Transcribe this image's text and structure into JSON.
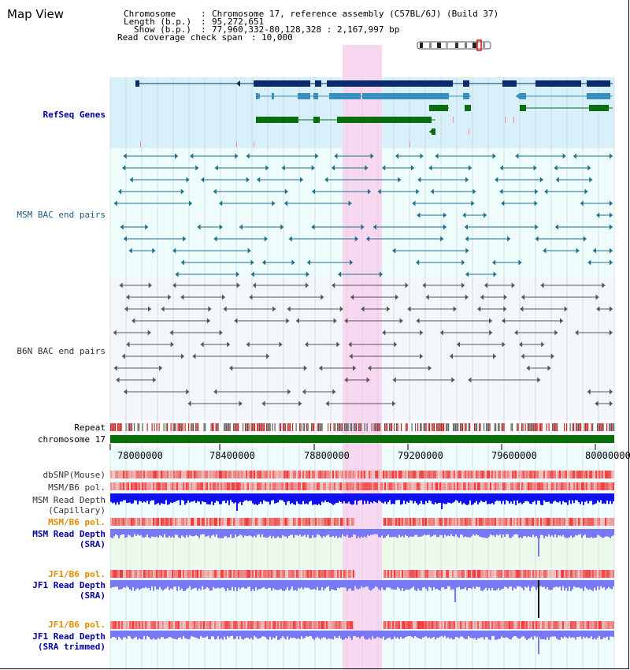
{
  "page": {
    "title": "Map View"
  },
  "info": {
    "chromosome_key": "Chromosome",
    "chromosome_value": "Chromosome 17, reference assembly (C57BL/6J) (Build 37)",
    "length_key": "Length (b.p.)",
    "length_value": "95,272,651",
    "show_key": "Show (b.p.)",
    "show_value": "77,960,332-80,128,328 : 2,167,997 bp",
    "coverage_key": "Read coverage check span",
    "coverage_value": "10,000"
  },
  "tracks": {
    "refseq": "RefSeq Genes",
    "msm_bac": "MSM BAC end pairs",
    "b6n_bac": "B6N BAC end pairs",
    "repeat": "Repeat",
    "chromosome": "chromosome 17",
    "dbsnp": "dbSNP(Mouse)",
    "msm_b6_pol_1": "MSM/B6 pol.",
    "msm_depth_cap_1": "MSM Read Depth",
    "msm_depth_cap_2": "(Capillary)",
    "msm_b6_pol_2": "MSM/B6 pol.",
    "msm_depth_sra_1": "MSM Read Depth",
    "msm_depth_sra_2": "(SRA)",
    "jf1_b6_pol_1": "JF1/B6 pol.",
    "jf1_depth_sra_1": "JF1 Read Depth",
    "jf1_depth_sra_2": "(SRA)",
    "jf1_b6_pol_2": "JF1/B6 pol.",
    "jf1_depth_trim_1": "JF1 Read Depth",
    "jf1_depth_trim_2": "(SRA trimmed)"
  },
  "axis": {
    "ticks": [
      "78000000",
      "78400000",
      "78800000",
      "79200000",
      "79600000",
      "80000000"
    ]
  },
  "colors": {
    "refseq_bg": "#d8f0fa",
    "bac_bg": "#eefcfc",
    "b6n_bg": "#f3f6fa",
    "highlight": "#f8d8f0",
    "refseq_navy": "#0a2c6e",
    "refseq_teal": "#3a8fbf",
    "refseq_green": "#0a6e10",
    "msm_bac": "#1f6f8b",
    "b6n_bac": "#555555",
    "chrom_bar": "#0a6e0a",
    "snp_red": "#e83030",
    "depth_blue_dark": "#0f0fef",
    "depth_blue": "#7878f4",
    "sra_bg": "#ecfaec"
  }
}
